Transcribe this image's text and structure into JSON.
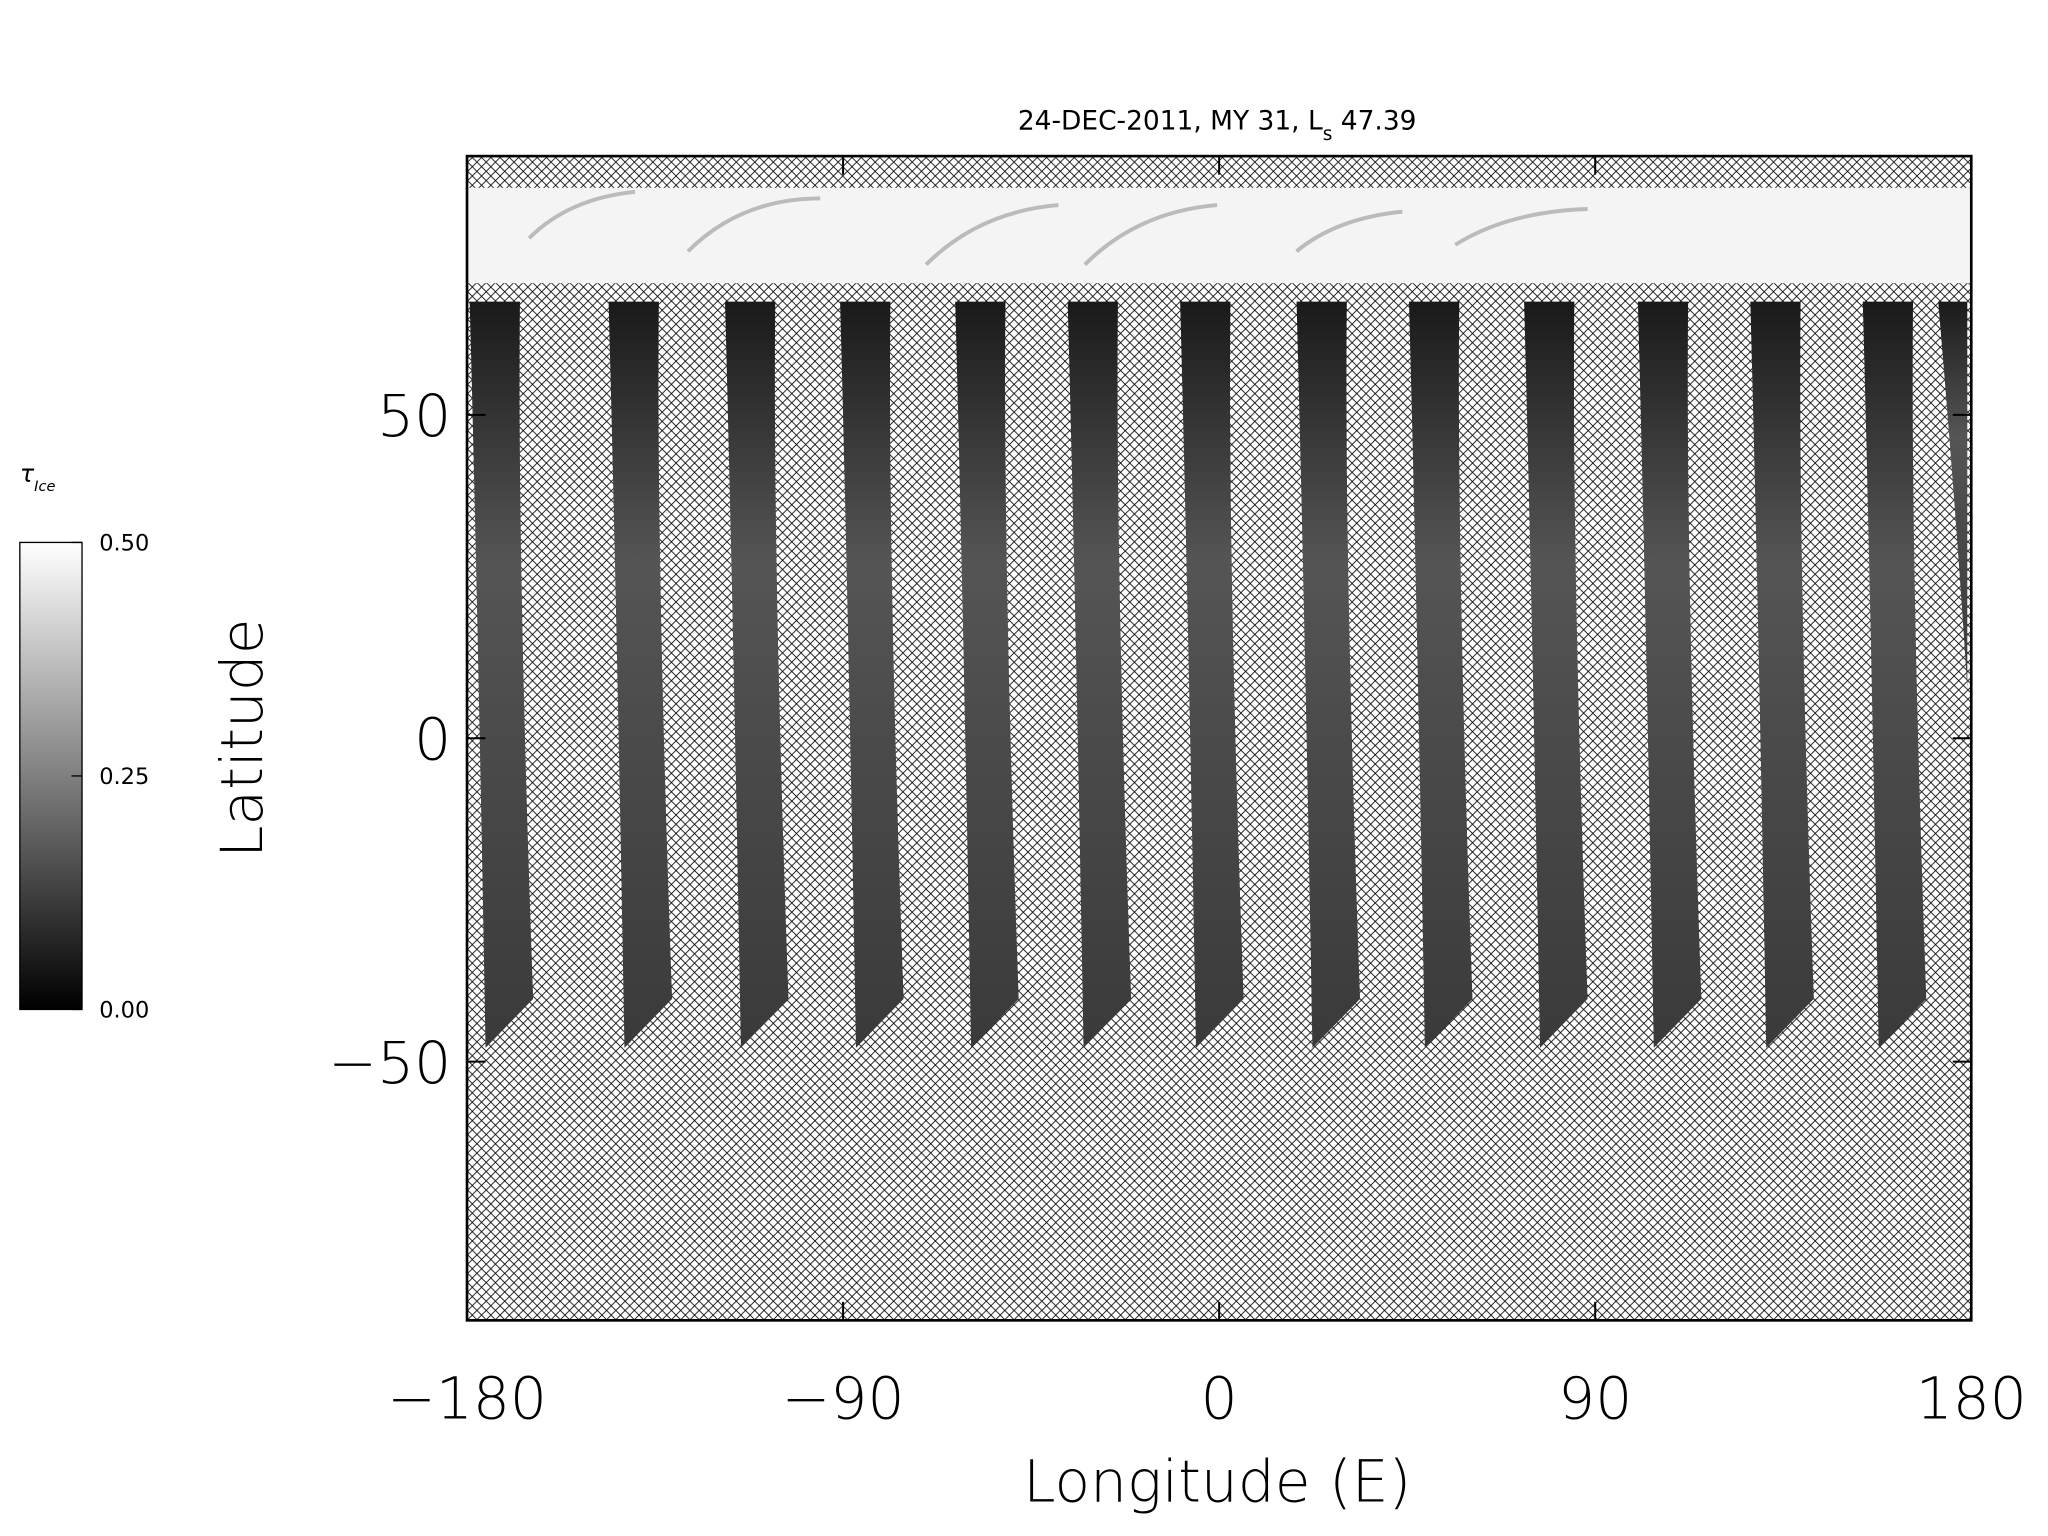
{
  "chart_data": {
    "type": "map",
    "title": [
      "24-DEC-2011, MY 31,  L",
      "s",
      " 47.39"
    ],
    "x_label": "Longitude (E)",
    "y_label": "Latitude",
    "xlim": [
      -180,
      180
    ],
    "ylim": [
      -90,
      90
    ],
    "xticks": [
      {
        "value": -180,
        "label": "−180"
      },
      {
        "value": -90,
        "label": "−90"
      },
      0,
      90,
      180
    ],
    "yticks": [
      {
        "value": -50,
        "label": "−50"
      },
      0,
      50
    ],
    "colorbar": {
      "label": "τ",
      "label_sub": "Ice",
      "lim": [
        0,
        0.5
      ],
      "ticks": [
        {
          "value": 0,
          "label": "0.00"
        },
        {
          "value": 0.25,
          "label": "0.25"
        },
        {
          "value": 0.5,
          "label": "0.50"
        }
      ]
    }
  }
}
